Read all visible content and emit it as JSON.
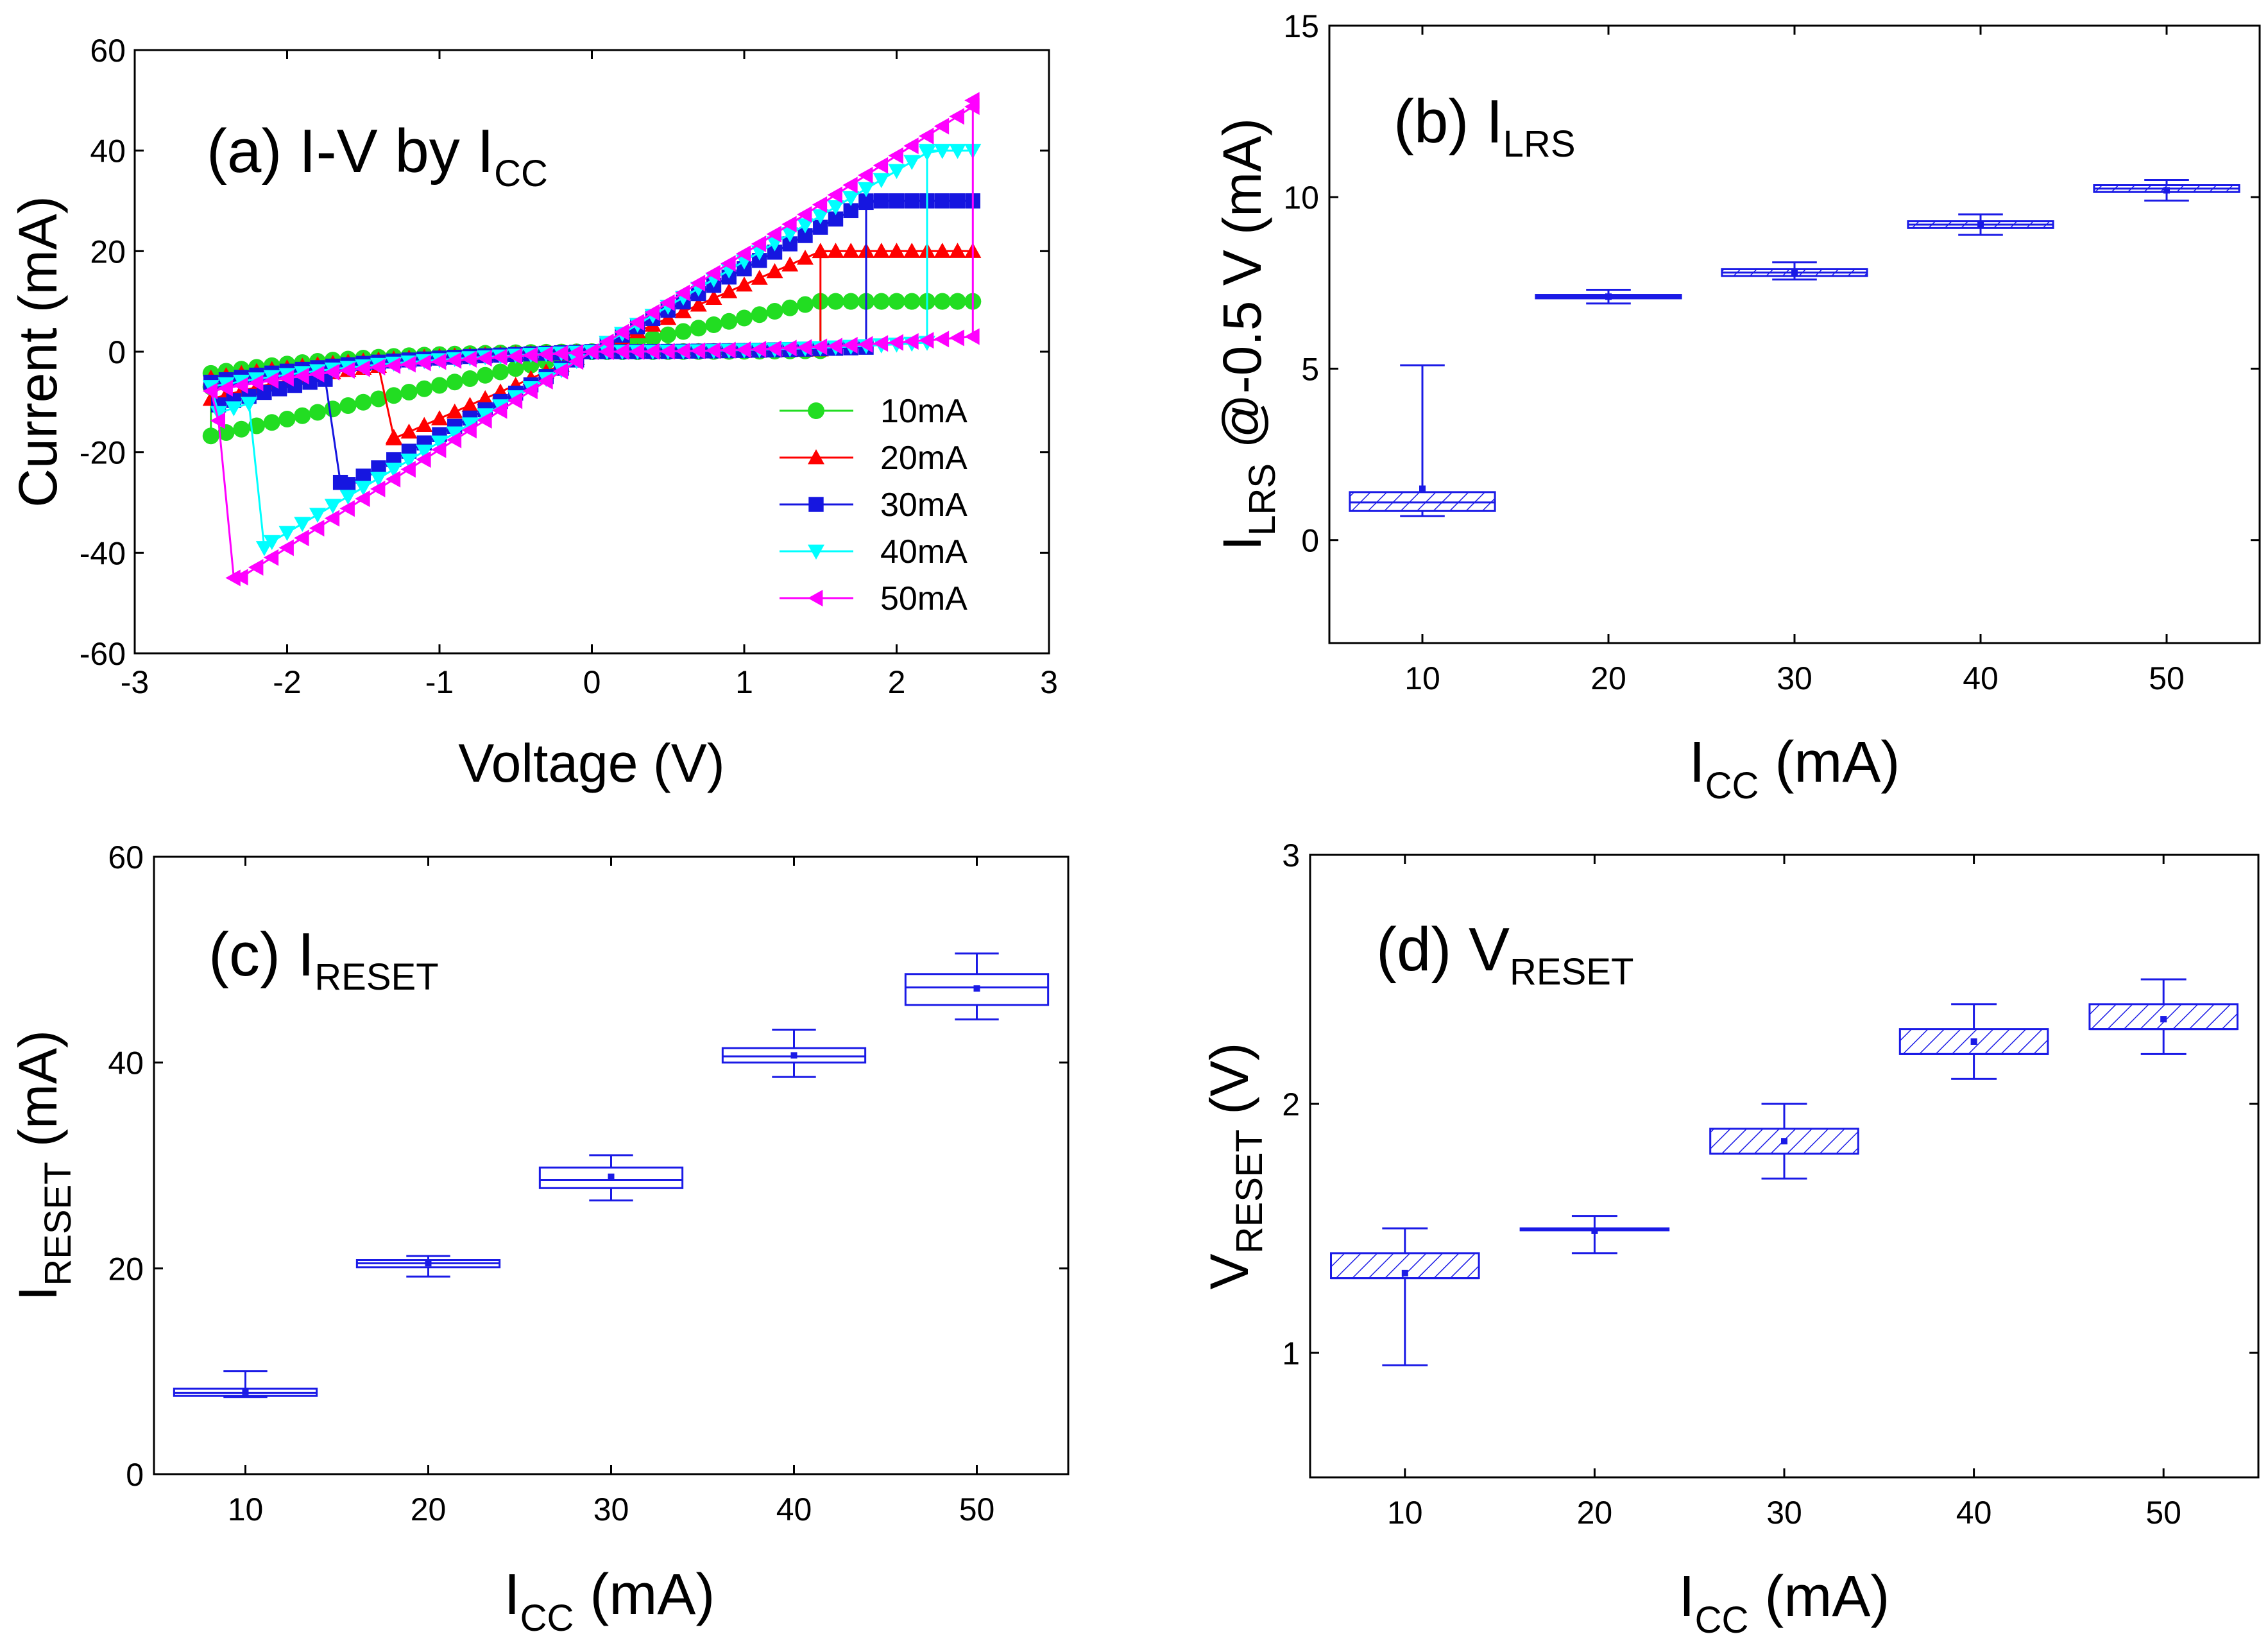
{
  "colors": {
    "green": "#22dd22",
    "red": "#ff0000",
    "blue": "#1616e0",
    "cyan": "#00ffff",
    "magenta": "#ff00ff",
    "box": "#1a1ae6",
    "axis": "#000000"
  },
  "chart_data": [
    {
      "type": "line",
      "panel": "a",
      "title_main": "(a) I-V by I",
      "title_sub": "CC",
      "xlabel": "Voltage (V)",
      "ylabel": "Current (mA)",
      "xlim": [
        -3,
        3
      ],
      "ylim": [
        -60,
        60
      ],
      "xticks": [
        -3,
        -2,
        -1,
        0,
        1,
        2,
        3
      ],
      "yticks": [
        -60,
        -40,
        -20,
        0,
        20,
        40,
        60
      ],
      "xtick_labels": [
        "-3",
        "-2",
        "-1",
        "0",
        "1",
        "2",
        "3"
      ],
      "ytick_labels": [
        "-60",
        "-40",
        "-20",
        "0",
        "20",
        "40",
        "60"
      ],
      "legend_position": "lower-right",
      "series": [
        {
          "name": "10mA",
          "marker": "circle",
          "color_key": "green",
          "vset": 1.5,
          "vreset": -2.5,
          "ireset": -7,
          "icc": 10,
          "slope": 6.7
        },
        {
          "name": "20mA",
          "marker": "triangle-up",
          "color_key": "red",
          "vset": 1.5,
          "vreset": -1.3,
          "ireset": -17,
          "icc": 20,
          "slope": 13.3
        },
        {
          "name": "30mA",
          "marker": "square",
          "color_key": "blue",
          "vset": 1.8,
          "vreset": -1.65,
          "ireset": -26,
          "icc": 30,
          "slope": 16.5
        },
        {
          "name": "40mA",
          "marker": "triangle-down",
          "color_key": "cyan",
          "vset": 2.2,
          "vreset": -2.15,
          "ireset": -39,
          "icc": 40,
          "slope": 18
        },
        {
          "name": "50mA",
          "marker": "triangle-left",
          "color_key": "magenta",
          "vset": 2.5,
          "vreset": -2.35,
          "ireset": -45,
          "icc": 50,
          "slope": 19.5
        }
      ]
    },
    {
      "type": "box",
      "panel": "b",
      "title_main": "(b) I",
      "title_sub": "LRS",
      "xlabel_main": "I",
      "xlabel_sub": "CC",
      "xlabel_tail": " (mA)",
      "ylabel_main": "I",
      "ylabel_sub": "LRS",
      "ylabel_tail": " @-0.5 V (mA)",
      "categories": [
        "10",
        "20",
        "30",
        "40",
        "50"
      ],
      "ylim": [
        -3,
        15
      ],
      "yticks": [
        0,
        5,
        10,
        15
      ],
      "ytick_labels": [
        "0",
        "5",
        "10",
        "15"
      ],
      "hatched": true,
      "boxes": [
        {
          "min": 0.7,
          "q1": 0.85,
          "median": 1.1,
          "q3": 1.4,
          "max": 5.1,
          "mean": 1.5
        },
        {
          "min": 6.9,
          "q1": 7.05,
          "median": 7.1,
          "q3": 7.15,
          "max": 7.3,
          "mean": 7.1
        },
        {
          "min": 7.6,
          "q1": 7.7,
          "median": 7.8,
          "q3": 7.9,
          "max": 8.1,
          "mean": 7.8
        },
        {
          "min": 8.9,
          "q1": 9.1,
          "median": 9.2,
          "q3": 9.3,
          "max": 9.5,
          "mean": 9.2
        },
        {
          "min": 9.9,
          "q1": 10.15,
          "median": 10.25,
          "q3": 10.35,
          "max": 10.5,
          "mean": 10.2
        }
      ]
    },
    {
      "type": "box",
      "panel": "c",
      "title_main": "(c) I",
      "title_sub": "RESET",
      "xlabel_main": "I",
      "xlabel_sub": "CC",
      "xlabel_tail": " (mA)",
      "ylabel_main": "I",
      "ylabel_sub": "RESET",
      "ylabel_tail": " (mA)",
      "categories": [
        "10",
        "20",
        "30",
        "40",
        "50"
      ],
      "ylim": [
        0,
        60
      ],
      "yticks": [
        0,
        20,
        40,
        60
      ],
      "ytick_labels": [
        "0",
        "20",
        "40",
        "60"
      ],
      "hatched": false,
      "boxes": [
        {
          "min": 7.5,
          "q1": 7.6,
          "median": 7.9,
          "q3": 8.3,
          "max": 10.0,
          "mean": 8.0
        },
        {
          "min": 19.2,
          "q1": 20.1,
          "median": 20.5,
          "q3": 20.8,
          "max": 21.2,
          "mean": 20.5
        },
        {
          "min": 26.6,
          "q1": 27.8,
          "median": 28.6,
          "q3": 29.8,
          "max": 31.0,
          "mean": 28.9
        },
        {
          "min": 38.6,
          "q1": 40.0,
          "median": 40.6,
          "q3": 41.4,
          "max": 43.2,
          "mean": 40.7
        },
        {
          "min": 44.2,
          "q1": 45.6,
          "median": 47.3,
          "q3": 48.6,
          "max": 50.6,
          "mean": 47.2
        }
      ]
    },
    {
      "type": "box",
      "panel": "d",
      "title_main": "(d) V",
      "title_sub": "RESET",
      "xlabel_main": "I",
      "xlabel_sub": "CC",
      "xlabel_tail": " (mA)",
      "ylabel_main": "V",
      "ylabel_sub": "RESET",
      "ylabel_tail": " (V)",
      "categories": [
        "10",
        "20",
        "30",
        "40",
        "50"
      ],
      "ylim": [
        0.5,
        3
      ],
      "yticks": [
        1,
        2,
        3
      ],
      "ytick_labels": [
        "1",
        "2",
        "3"
      ],
      "hatched": true,
      "boxes": [
        {
          "min": 0.95,
          "q1": 1.3,
          "median": 1.3,
          "q3": 1.4,
          "max": 1.5,
          "mean": 1.32
        },
        {
          "min": 1.4,
          "q1": 1.5,
          "median": 1.5,
          "q3": 1.5,
          "max": 1.55,
          "mean": 1.49
        },
        {
          "min": 1.7,
          "q1": 1.8,
          "median": 1.8,
          "q3": 1.9,
          "max": 2.0,
          "mean": 1.85
        },
        {
          "min": 2.1,
          "q1": 2.2,
          "median": 2.2,
          "q3": 2.3,
          "max": 2.4,
          "mean": 2.25
        },
        {
          "min": 2.2,
          "q1": 2.3,
          "median": 2.3,
          "q3": 2.4,
          "max": 2.5,
          "mean": 2.34
        }
      ]
    }
  ]
}
